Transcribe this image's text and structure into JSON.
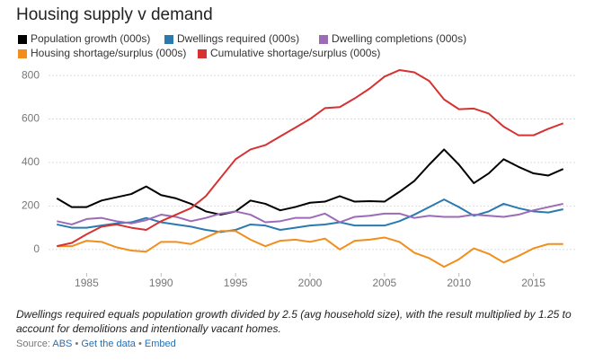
{
  "chart_data": {
    "type": "line",
    "title": "Housing supply v demand",
    "x": [
      1983,
      1984,
      1985,
      1986,
      1987,
      1988,
      1989,
      1990,
      1991,
      1992,
      1993,
      1994,
      1995,
      1996,
      1997,
      1998,
      1999,
      2000,
      2001,
      2002,
      2003,
      2004,
      2005,
      2006,
      2007,
      2008,
      2009,
      2010,
      2011,
      2012,
      2013,
      2014,
      2015,
      2016,
      2017
    ],
    "series": [
      {
        "name": "Population growth (000s)",
        "color": "#000000",
        "values": [
          235,
          195,
          195,
          225,
          240,
          255,
          290,
          250,
          235,
          210,
          175,
          160,
          175,
          225,
          210,
          180,
          195,
          215,
          220,
          245,
          220,
          222,
          220,
          265,
          315,
          390,
          460,
          390,
          305,
          350,
          415,
          380,
          350,
          340,
          370
        ]
      },
      {
        "name": "Dwellings required (000s)",
        "color": "#2a7ab0",
        "values": [
          115,
          100,
          100,
          110,
          120,
          125,
          145,
          125,
          115,
          105,
          90,
          80,
          90,
          115,
          110,
          90,
          100,
          110,
          115,
          125,
          110,
          110,
          110,
          130,
          160,
          195,
          230,
          195,
          155,
          175,
          210,
          190,
          175,
          170,
          185
        ]
      },
      {
        "name": "Dwelling completions (000s)",
        "color": "#9b6bb8",
        "values": [
          130,
          115,
          140,
          145,
          130,
          120,
          135,
          160,
          150,
          130,
          145,
          165,
          175,
          160,
          125,
          130,
          145,
          145,
          165,
          125,
          150,
          155,
          165,
          165,
          145,
          155,
          150,
          150,
          160,
          155,
          150,
          160,
          180,
          195,
          210
        ]
      },
      {
        "name": "Housing shortage/surplus (000s)",
        "color": "#f28e1c",
        "values": [
          15,
          15,
          40,
          35,
          10,
          -5,
          -10,
          35,
          35,
          25,
          55,
          85,
          85,
          45,
          15,
          40,
          45,
          35,
          50,
          0,
          40,
          45,
          55,
          35,
          -15,
          -40,
          -80,
          -45,
          5,
          -20,
          -60,
          -30,
          5,
          25,
          25
        ]
      },
      {
        "name": "Cumulative shortage/surplus (000s)",
        "color": "#d63232",
        "values": [
          15,
          30,
          70,
          105,
          115,
          100,
          90,
          130,
          160,
          190,
          245,
          330,
          415,
          460,
          480,
          520,
          560,
          600,
          650,
          655,
          695,
          740,
          795,
          825,
          815,
          775,
          690,
          645,
          648,
          625,
          565,
          525,
          525,
          555,
          580
        ]
      }
    ],
    "xlim": [
      1982.2,
      2017.8
    ],
    "xticks": [
      1985,
      1990,
      1995,
      2000,
      2005,
      2010,
      2015
    ],
    "ylim": [
      -100,
      850
    ],
    "yticks": [
      0,
      200,
      400,
      600,
      800
    ],
    "grid": true
  },
  "footnote": "Dwellings required equals population growth divided by 2.5 (avg household size), with the result multiplied by 1.25 to account for demolitions and intentionally vacant homes.",
  "source": {
    "label": "Source:",
    "links": [
      "ABS",
      "Get the data",
      "Embed"
    ],
    "separator": "•"
  }
}
